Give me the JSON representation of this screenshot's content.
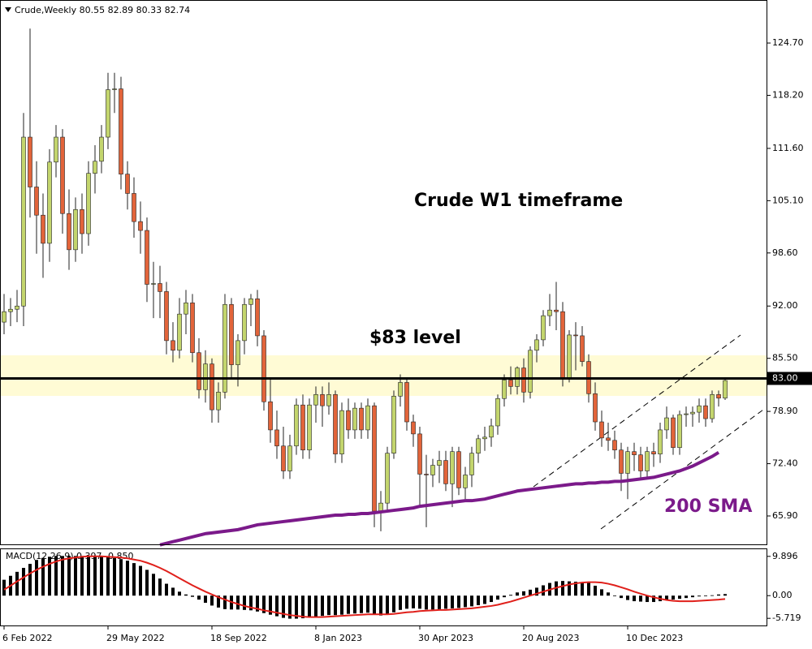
{
  "chart_data": [
    {
      "type": "candlestick",
      "title": "Crude,Weekly  80.55 82.89 80.33 82.74",
      "up_color": "#c3d56d",
      "down_color": "#e2643a",
      "wick_color": "#222222",
      "ylim": [
        62.27,
        130.05
      ],
      "yticks": [
        {
          "value": 65.9,
          "label": "65.90"
        },
        {
          "value": 72.4,
          "label": "72.40"
        },
        {
          "value": 78.9,
          "label": "78.90"
        },
        {
          "value": 85.5,
          "label": "85.50"
        },
        {
          "value": 92,
          "label": "92.00"
        },
        {
          "value": 98.6,
          "label": "98.60"
        },
        {
          "value": 105.1,
          "label": "105.10"
        },
        {
          "value": 111.6,
          "label": "111.60"
        },
        {
          "value": 118.2,
          "label": "118.20"
        },
        {
          "value": 124.7,
          "label": "124.70"
        }
      ],
      "level": {
        "value": 83,
        "label": "83.00"
      },
      "annotations": [
        "Crude W1 timeframe",
        "$83 level"
      ],
      "categories": [
        "6 Feb 2022",
        null,
        null,
        null,
        null,
        null,
        null,
        null,
        null,
        null,
        null,
        null,
        null,
        null,
        null,
        null,
        "29 May 2022",
        null,
        null,
        null,
        null,
        null,
        null,
        null,
        null,
        null,
        null,
        null,
        null,
        null,
        null,
        null,
        "18 Sep 2022",
        null,
        null,
        null,
        null,
        null,
        null,
        null,
        null,
        null,
        null,
        null,
        null,
        null,
        null,
        null,
        "8 Jan 2023",
        null,
        null,
        null,
        null,
        null,
        null,
        null,
        null,
        null,
        null,
        null,
        null,
        null,
        null,
        null,
        "30 Apr 2023",
        null,
        null,
        null,
        null,
        null,
        null,
        null,
        null,
        null,
        null,
        null,
        null,
        null,
        null,
        null,
        "20 Aug 2023",
        null,
        null,
        null,
        null,
        null,
        null,
        null,
        null,
        null,
        null,
        null,
        null,
        null,
        null,
        null,
        "10 Dec 2023",
        null,
        null,
        null,
        null,
        null,
        null,
        null,
        null,
        null,
        null,
        null,
        null,
        null,
        null,
        null
      ],
      "open": [
        90.0,
        91.3,
        91.6,
        92.0,
        113.0,
        106.8,
        103.3,
        99.8,
        109.9,
        113.0,
        103.5,
        99.0,
        104.0,
        101.0,
        108.5,
        110.0,
        113.0,
        118.9,
        119.0,
        108.4,
        106.0,
        102.5,
        101.4,
        94.7,
        94.8,
        93.8,
        87.7,
        86.5,
        91.0,
        92.4,
        86.2,
        81.6,
        84.8,
        79.1,
        81.3,
        92.2,
        84.7,
        87.7,
        92.2,
        92.9,
        88.3,
        80.1,
        76.6,
        74.6,
        71.5,
        74.6,
        79.7,
        74.1,
        79.7,
        81.0,
        79.6,
        81.0,
        73.6,
        79.0,
        76.6,
        79.3,
        76.6,
        79.6,
        66.5,
        67.5,
        73.7,
        80.8,
        82.5,
        77.6,
        76.1,
        71.1,
        71.0,
        72.2,
        72.8,
        69.9,
        73.9,
        69.4,
        71.0,
        73.7,
        75.5,
        75.7,
        77.1,
        80.5,
        82.8,
        82.0,
        84.3,
        81.3,
        86.5,
        87.8,
        90.8,
        91.5,
        91.3,
        83.1,
        88.4,
        88.3,
        85.1,
        81.1,
        77.6,
        75.6,
        75.3,
        74.1,
        71.2,
        73.9,
        73.5,
        71.5,
        73.9,
        73.6,
        76.6,
        78.1,
        74.4,
        78.5,
        78.6,
        78.8,
        79.6,
        78.0,
        81.0,
        80.55
      ],
      "high": [
        93.5,
        93.0,
        94.0,
        116.0,
        126.5,
        110.0,
        106.0,
        111.5,
        114.5,
        114.0,
        106.5,
        105.5,
        106.0,
        110.0,
        112.0,
        114.5,
        121.0,
        121.0,
        120.5,
        110.0,
        108.0,
        105.0,
        103.0,
        97.5,
        97.0,
        95.0,
        90.0,
        93.0,
        94.0,
        93.5,
        88.0,
        86.5,
        85.5,
        82.5,
        93.5,
        93.0,
        88.5,
        93.0,
        93.5,
        94.0,
        89.0,
        83.0,
        79.0,
        77.0,
        76.0,
        80.5,
        81.0,
        80.5,
        82.0,
        82.0,
        82.5,
        81.5,
        80.0,
        80.5,
        80.0,
        80.0,
        80.5,
        80.0,
        69.0,
        74.5,
        81.5,
        83.5,
        83.0,
        78.5,
        77.0,
        73.5,
        73.0,
        74.0,
        74.0,
        74.5,
        74.5,
        72.0,
        74.5,
        76.0,
        77.0,
        78.0,
        81.0,
        83.5,
        84.5,
        84.5,
        85.5,
        87.0,
        88.5,
        91.5,
        93.5,
        95.0,
        92.5,
        89.0,
        90.0,
        89.5,
        86.0,
        82.5,
        79.0,
        77.5,
        76.5,
        75.0,
        74.5,
        75.0,
        74.5,
        74.5,
        75.0,
        77.5,
        79.5,
        78.5,
        79.0,
        79.5,
        79.5,
        80.5,
        80.5,
        81.5,
        81.5,
        82.89
      ],
      "low": [
        88.5,
        89.5,
        90.0,
        89.5,
        103.0,
        98.5,
        95.5,
        97.5,
        108.0,
        101.0,
        96.5,
        97.5,
        98.5,
        99.5,
        106.0,
        108.5,
        111.5,
        116.0,
        106.5,
        104.0,
        100.5,
        98.5,
        92.5,
        90.5,
        90.5,
        86.0,
        85.0,
        85.5,
        88.5,
        85.0,
        80.5,
        80.0,
        77.5,
        77.5,
        80.5,
        83.0,
        82.0,
        86.0,
        89.5,
        87.0,
        79.0,
        75.0,
        73.0,
        70.5,
        70.5,
        73.5,
        73.0,
        73.0,
        77.5,
        77.0,
        78.5,
        72.5,
        72.5,
        75.5,
        75.5,
        75.5,
        75.5,
        64.5,
        64.0,
        66.5,
        73.0,
        79.5,
        76.5,
        74.5,
        67.0,
        64.5,
        69.5,
        70.0,
        69.0,
        67.0,
        68.5,
        68.0,
        69.5,
        72.5,
        74.0,
        74.5,
        76.0,
        79.5,
        81.0,
        81.0,
        80.0,
        80.5,
        85.0,
        87.0,
        89.5,
        89.0,
        82.0,
        82.5,
        84.0,
        84.5,
        80.0,
        76.5,
        74.5,
        74.0,
        73.0,
        69.0,
        68.0,
        71.5,
        70.5,
        70.5,
        72.0,
        72.5,
        75.5,
        73.5,
        73.5,
        77.0,
        77.0,
        77.5,
        77.0,
        77.5,
        79.5,
        80.33
      ],
      "close": [
        91.3,
        91.6,
        92.0,
        113.0,
        106.8,
        103.3,
        99.8,
        109.9,
        113.0,
        103.5,
        99.0,
        104.0,
        101.0,
        108.5,
        110.0,
        113.0,
        118.9,
        119.0,
        108.4,
        106.0,
        102.5,
        101.4,
        94.7,
        94.8,
        93.8,
        87.7,
        86.5,
        91.0,
        92.4,
        86.2,
        81.6,
        84.8,
        79.1,
        81.3,
        92.2,
        84.7,
        87.7,
        92.2,
        92.9,
        88.3,
        80.1,
        76.6,
        74.6,
        71.5,
        74.6,
        79.7,
        74.1,
        79.7,
        81.0,
        79.6,
        81.0,
        73.6,
        79.0,
        76.6,
        79.3,
        76.6,
        79.6,
        66.5,
        67.5,
        73.7,
        80.8,
        82.5,
        77.6,
        76.1,
        71.1,
        71.0,
        72.2,
        72.8,
        69.9,
        73.9,
        69.4,
        71.0,
        73.7,
        75.5,
        75.7,
        77.1,
        80.5,
        82.8,
        82.0,
        84.3,
        81.3,
        86.5,
        87.8,
        90.8,
        91.5,
        91.3,
        83.1,
        88.4,
        88.3,
        85.1,
        81.1,
        77.6,
        75.6,
        75.3,
        74.1,
        71.2,
        73.9,
        73.5,
        71.5,
        73.9,
        73.6,
        76.6,
        78.1,
        74.4,
        78.5,
        78.6,
        78.8,
        79.6,
        78.0,
        81.0,
        80.55,
        82.74
      ],
      "series": [
        {
          "name": "200 SMA",
          "color": "#7b1a8a",
          "values": [
            null,
            null,
            null,
            null,
            null,
            null,
            null,
            null,
            null,
            null,
            null,
            null,
            null,
            null,
            null,
            null,
            null,
            null,
            null,
            null,
            null,
            null,
            null,
            null,
            62.3,
            62.5,
            62.7,
            62.9,
            63.1,
            63.3,
            63.5,
            63.7,
            63.8,
            63.9,
            64.0,
            64.1,
            64.2,
            64.4,
            64.6,
            64.8,
            64.9,
            65.0,
            65.1,
            65.2,
            65.3,
            65.4,
            65.5,
            65.6,
            65.7,
            65.8,
            65.9,
            66.0,
            66.0,
            66.1,
            66.1,
            66.2,
            66.2,
            66.3,
            66.4,
            66.5,
            66.6,
            66.7,
            66.8,
            66.9,
            67.1,
            67.2,
            67.3,
            67.4,
            67.5,
            67.6,
            67.7,
            67.8,
            67.8,
            67.9,
            68.0,
            68.2,
            68.4,
            68.6,
            68.8,
            69.0,
            69.1,
            69.2,
            69.3,
            69.4,
            69.5,
            69.6,
            69.7,
            69.8,
            69.9,
            69.9,
            70.0,
            70.0,
            70.1,
            70.1,
            70.2,
            70.2,
            70.3,
            70.4,
            70.5,
            70.6,
            70.7,
            70.9,
            71.1,
            71.3,
            71.5,
            71.8,
            72.1,
            72.5,
            72.9,
            73.3,
            73.8,
            null
          ]
        }
      ]
    },
    {
      "type": "macd",
      "title": "MACD(12,26,9) 0.397 -0.850",
      "ylim": [
        -7.52,
        11.7
      ],
      "yticks": [
        -5.719,
        {
          "value": 0,
          "label": "0.00"
        },
        9.896
      ],
      "series": [
        {
          "style": "histogram",
          "color": "#000000",
          "values": [
            4,
            5,
            6,
            7,
            8,
            9,
            9.5,
            9.8,
            10,
            10,
            10,
            10,
            10,
            10,
            9.8,
            9.8,
            9.7,
            9.5,
            9.2,
            8.8,
            8.2,
            7.5,
            6.5,
            5.5,
            4.3,
            3,
            2,
            1,
            0.3,
            -0.3,
            -1,
            -1.8,
            -2.5,
            -3,
            -3.4,
            -3.5,
            -3.5,
            -3.6,
            -3.7,
            -4,
            -4.4,
            -4.8,
            -5.2,
            -5.6,
            -5.8,
            -5.8,
            -5.7,
            -5.5,
            -5.3,
            -5.1,
            -4.9,
            -4.9,
            -4.8,
            -4.6,
            -4.5,
            -4.4,
            -4.3,
            -4.6,
            -5,
            -4.8,
            -4.2,
            -3.6,
            -3.3,
            -3.2,
            -3.3,
            -3.5,
            -3.5,
            -3.4,
            -3.3,
            -3.2,
            -3.1,
            -2.9,
            -2.7,
            -2.4,
            -2.1,
            -1.6,
            -1,
            -0.4,
            0.2,
            0.8,
            1.1,
            1.5,
            2,
            2.6,
            3.2,
            3.6,
            3.7,
            3.6,
            3.5,
            3.4,
            3.2,
            2.5,
            1.6,
            0.8,
            0,
            -0.6,
            -1.1,
            -1.4,
            -1.5,
            -1.6,
            -1.6,
            -1.4,
            -1.1,
            -1,
            -0.8,
            -0.6,
            -0.4,
            -0.2,
            0,
            0.1,
            0.3,
            0.397
          ]
        },
        {
          "style": "line",
          "color": "#e0201b",
          "values": [
            1.5,
            2.5,
            3.6,
            4.6,
            5.6,
            6.5,
            7.3,
            8,
            8.6,
            9.1,
            9.4,
            9.6,
            9.8,
            9.9,
            9.9,
            9.9,
            9.8,
            9.7,
            9.6,
            9.4,
            9.1,
            8.8,
            8.3,
            7.7,
            7,
            6.2,
            5.3,
            4.4,
            3.5,
            2.6,
            1.8,
            1,
            0.3,
            -0.4,
            -1,
            -1.6,
            -2.1,
            -2.6,
            -3,
            -3.3,
            -3.7,
            -4,
            -4.3,
            -4.6,
            -4.9,
            -5.1,
            -5.3,
            -5.4,
            -5.4,
            -5.4,
            -5.3,
            -5.2,
            -5.1,
            -5,
            -4.9,
            -4.8,
            -4.7,
            -4.7,
            -4.7,
            -4.7,
            -4.6,
            -4.4,
            -4.2,
            -4.1,
            -3.9,
            -3.8,
            -3.7,
            -3.6,
            -3.6,
            -3.5,
            -3.4,
            -3.3,
            -3.2,
            -3,
            -2.8,
            -2.6,
            -2.3,
            -1.9,
            -1.5,
            -1,
            -0.5,
            0,
            0.5,
            1,
            1.5,
            2,
            2.4,
            2.8,
            3.1,
            3.3,
            3.4,
            3.4,
            3.3,
            3,
            2.6,
            2.1,
            1.6,
            1,
            0.5,
            0,
            -0.4,
            -0.8,
            -1.1,
            -1.3,
            -1.4,
            -1.4,
            -1.4,
            -1.3,
            -1.2,
            -1.1,
            -1,
            -0.85
          ]
        }
      ]
    }
  ]
}
